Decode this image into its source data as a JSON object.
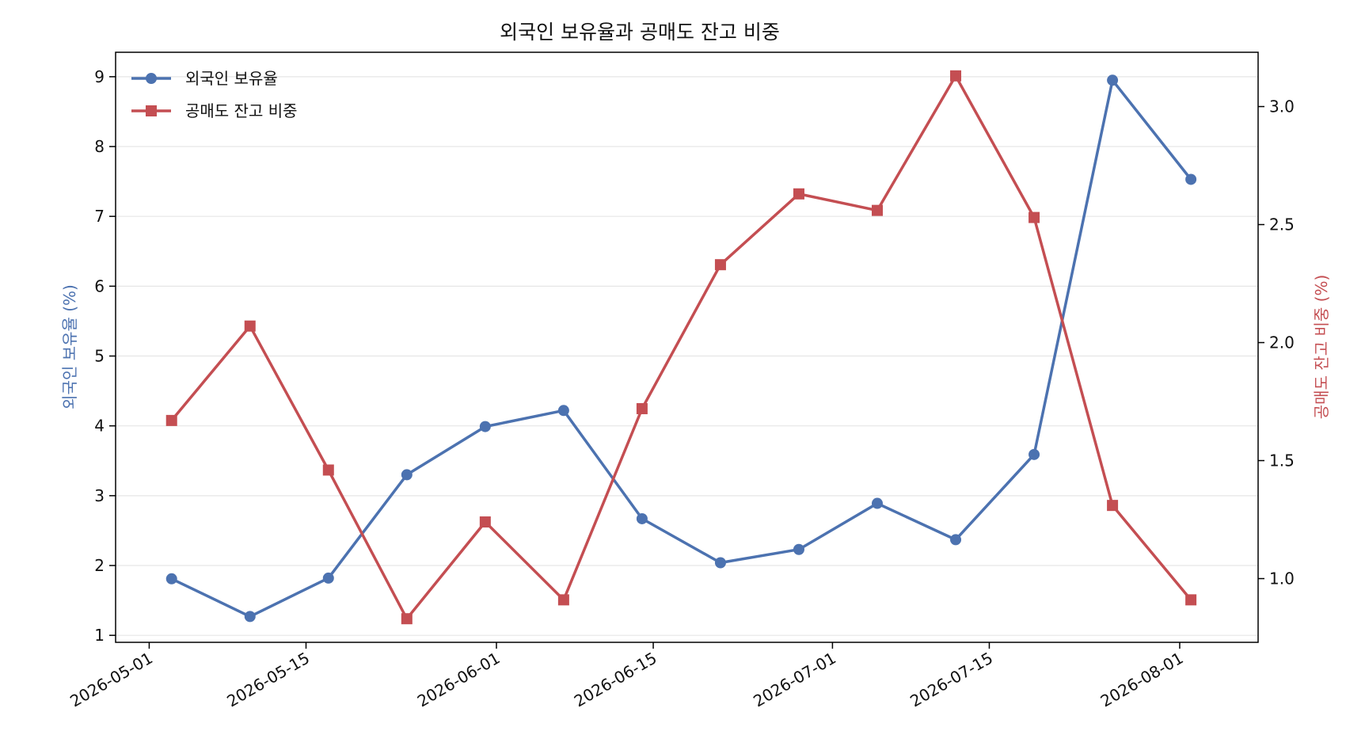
{
  "chart_data": {
    "type": "line",
    "title": "외국인 보유율과 공매도 잔고 비중",
    "x": [
      "2026-05-03",
      "2026-05-10",
      "2026-05-17",
      "2026-05-24",
      "2026-05-31",
      "2026-06-07",
      "2026-06-14",
      "2026-06-21",
      "2026-06-28",
      "2026-07-05",
      "2026-07-12",
      "2026-07-19",
      "2026-07-26",
      "2026-08-02"
    ],
    "x_ticks": [
      "2026-05-01",
      "2026-05-15",
      "2026-06-01",
      "2026-06-15",
      "2026-07-01",
      "2026-07-15",
      "2026-08-01"
    ],
    "xlim": [
      "2026-04-28",
      "2026-08-08"
    ],
    "series": [
      {
        "name": "외국인 보유율",
        "axis": "left",
        "color": "#4c72b0",
        "marker": "circle",
        "values": [
          1.81,
          1.27,
          1.82,
          3.3,
          3.99,
          4.22,
          2.67,
          2.04,
          2.23,
          2.89,
          2.37,
          3.59,
          8.95,
          7.53
        ]
      },
      {
        "name": "공매도 잔고 비중",
        "axis": "right",
        "color": "#c44e52",
        "marker": "square",
        "values": [
          1.67,
          2.07,
          1.46,
          0.83,
          1.24,
          0.91,
          1.72,
          2.33,
          2.63,
          2.56,
          3.13,
          2.53,
          1.31,
          0.91
        ]
      }
    ],
    "ylabel": "외국인 보유율 (%)",
    "ylim": [
      0.9,
      9.35
    ],
    "yticks": [
      1,
      2,
      3,
      4,
      5,
      6,
      7,
      8,
      9
    ],
    "y2label": "공매도 잔고 비중 (%)",
    "y2lim": [
      0.73,
      3.23
    ],
    "y2ticks": [
      "1.0",
      "1.5",
      "2.0",
      "2.5",
      "3.0"
    ],
    "grid": true,
    "legend": "top-left"
  }
}
